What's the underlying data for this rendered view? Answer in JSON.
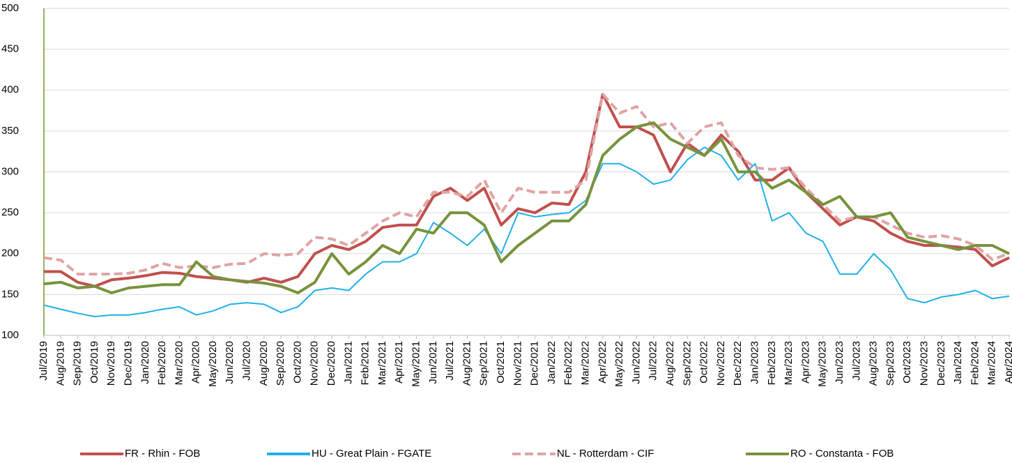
{
  "chart_data": {
    "type": "line",
    "categories": [
      "Jul/2019",
      "Aug/2019",
      "Sep/2019",
      "Oct/2019",
      "Nov/2019",
      "Dec/2019",
      "Jan/2020",
      "Feb/2020",
      "Mar/2020",
      "Apr/2020",
      "May/2020",
      "Jun/2020",
      "Jul/2020",
      "Aug/2020",
      "Sep/2020",
      "Oct/2020",
      "Nov/2020",
      "Dec/2020",
      "Jan/2021",
      "Feb/2021",
      "Mar/2021",
      "Apr/2021",
      "May/2021",
      "Jun/2021",
      "Jul/2021",
      "Aug/2021",
      "Sep/2021",
      "Oct/2021",
      "Nov/2021",
      "Dec/2021",
      "Jan/2022",
      "Feb/2022",
      "Mar/2022",
      "Apr/2022",
      "May/2022",
      "Jun/2022",
      "Jul/2022",
      "Aug/2022",
      "Sep/2022",
      "Oct/2022",
      "Nov/2022",
      "Dec/2022",
      "Jan/2023",
      "Feb/2023",
      "Mar/2023",
      "Apr/2023",
      "May/2023",
      "Jun/2023",
      "Jul/2023",
      "Aug/2023",
      "Sep/2023",
      "Oct/2023",
      "Nov/2023",
      "Dec/2023",
      "Jan/2024",
      "Feb/2024",
      "Mar/2024",
      "Apr/2024"
    ],
    "series": [
      {
        "name": "FR - Rhin - FOB",
        "color": "#c0504d",
        "dashed": false,
        "values": [
          178,
          178,
          165,
          160,
          168,
          170,
          173,
          177,
          176,
          172,
          170,
          168,
          165,
          170,
          165,
          172,
          200,
          210,
          205,
          215,
          232,
          235,
          235,
          270,
          280,
          265,
          280,
          235,
          255,
          250,
          262,
          260,
          300,
          395,
          355,
          355,
          345,
          300,
          335,
          320,
          345,
          325,
          290,
          290,
          305,
          275,
          255,
          235,
          245,
          240,
          225,
          215,
          210,
          210,
          208,
          205,
          185,
          195
        ]
      },
      {
        "name": "HU - Great Plain - FGATE",
        "color": "#1fb0e8",
        "dashed": false,
        "values": [
          137,
          132,
          127,
          123,
          125,
          125,
          128,
          132,
          135,
          125,
          130,
          138,
          140,
          138,
          128,
          135,
          155,
          158,
          155,
          175,
          190,
          190,
          200,
          238,
          225,
          210,
          230,
          200,
          250,
          245,
          248,
          250,
          265,
          310,
          310,
          300,
          285,
          290,
          315,
          330,
          320,
          290,
          310,
          240,
          250,
          225,
          215,
          175,
          175,
          200,
          180,
          145,
          140,
          147,
          150,
          155,
          145,
          148
        ]
      },
      {
        "name": "NL - Rotterdam - CIF",
        "color": "#e0a3a3",
        "dashed": true,
        "values": [
          195,
          192,
          175,
          175,
          175,
          176,
          180,
          188,
          183,
          185,
          183,
          187,
          188,
          200,
          198,
          200,
          220,
          218,
          210,
          225,
          240,
          250,
          245,
          275,
          275,
          270,
          290,
          250,
          280,
          275,
          275,
          275,
          290,
          395,
          372,
          380,
          355,
          360,
          335,
          355,
          360,
          320,
          305,
          303,
          305,
          280,
          260,
          240,
          245,
          245,
          235,
          225,
          220,
          222,
          218,
          210,
          193,
          200
        ]
      },
      {
        "name": "RO - Constanta - FOB",
        "color": "#77933c",
        "dashed": false,
        "values": [
          163,
          165,
          158,
          160,
          152,
          158,
          160,
          162,
          162,
          190,
          172,
          168,
          166,
          164,
          160,
          152,
          165,
          200,
          175,
          190,
          210,
          200,
          230,
          225,
          250,
          250,
          235,
          190,
          210,
          225,
          240,
          240,
          260,
          320,
          340,
          355,
          360,
          340,
          330,
          320,
          340,
          300,
          300,
          280,
          290,
          275,
          260,
          270,
          245,
          245,
          250,
          220,
          215,
          210,
          205,
          210,
          210,
          200
        ]
      }
    ],
    "ylim": [
      100,
      500
    ],
    "yticks": [
      100,
      150,
      200,
      250,
      300,
      350,
      400,
      450,
      500
    ],
    "grid": true,
    "legend": "bottom"
  }
}
